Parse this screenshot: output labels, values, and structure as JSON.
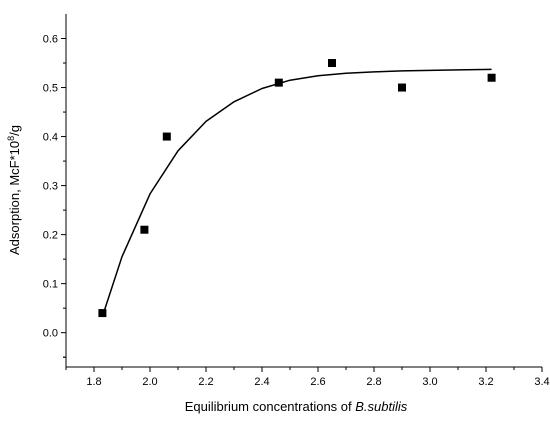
{
  "chart_data": {
    "type": "scatter",
    "title": "",
    "xlabel": "Equilibrium concentrations of",
    "xlabel_species": "B.subtilis",
    "ylabel": "Adsorption, McF*10",
    "ylabel_superscript": "8",
    "ylabel_unit": "/g",
    "xlim": [
      1.7,
      3.4
    ],
    "ylim": [
      -0.07,
      0.65
    ],
    "x_ticks": [
      "1.8",
      "2.0",
      "2.2",
      "2.4",
      "2.6",
      "2.8",
      "3.0",
      "3.2",
      "3.4"
    ],
    "y_ticks": [
      "0.0",
      "0.1",
      "0.2",
      "0.3",
      "0.4",
      "0.5",
      "0.6"
    ],
    "grid": false,
    "legend": "none",
    "colors": {
      "points": "#000000",
      "fit": "#000000",
      "axes": "#000000"
    },
    "series": [
      {
        "kind": "scatter",
        "marker": "square",
        "x": [
          1.83,
          1.98,
          2.06,
          2.46,
          2.65,
          2.9,
          3.22
        ],
        "y": [
          0.04,
          0.21,
          0.4,
          0.51,
          0.55,
          0.5,
          0.52
        ]
      },
      {
        "kind": "line",
        "fit": "exponential",
        "x": [
          1.83,
          1.9,
          2.0,
          2.1,
          2.2,
          2.3,
          2.4,
          2.5,
          2.6,
          2.7,
          2.8,
          2.9,
          3.0,
          3.1,
          3.22
        ],
        "y": [
          0.033,
          0.155,
          0.283,
          0.371,
          0.431,
          0.471,
          0.498,
          0.515,
          0.524,
          0.529,
          0.532,
          0.534,
          0.535,
          0.536,
          0.537
        ]
      }
    ]
  }
}
